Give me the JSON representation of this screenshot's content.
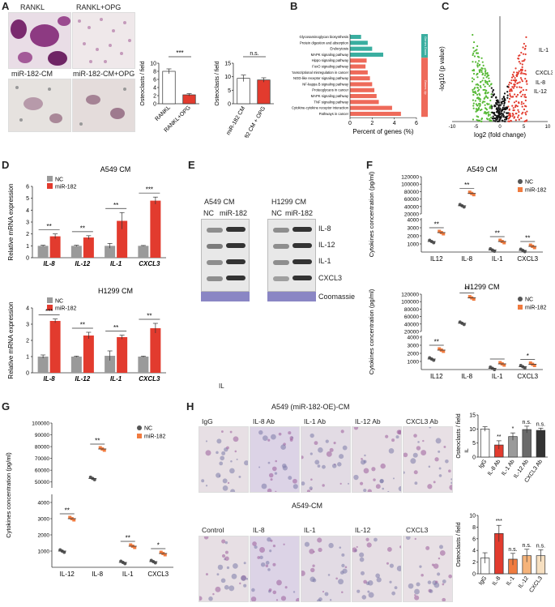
{
  "panels": {
    "A": "A",
    "B": "B",
    "C": "C",
    "D": "D",
    "E": "E",
    "F": "F",
    "G": "G",
    "H": "H"
  },
  "colors": {
    "red": "#e23b2e",
    "gray": "#9a9a9a",
    "dark": "#555555",
    "teal": "#3aaea0",
    "salmon": "#ee6a5a",
    "orange": "#f07b3f",
    "light_orange": "#f5b37a",
    "beige": "#f6dfc0",
    "green": "#56b935"
  },
  "A": {
    "micro_labels": [
      "RANKL",
      "RANKL+OPG",
      "miR-182-CM",
      "miR-182-CM+OPG"
    ],
    "chart1": {
      "ylabel": "Osteoclasts / field",
      "categories": [
        "RANKL",
        "RANKL+OPG"
      ],
      "sig": "***"
    },
    "chart2": {
      "ylabel": "Osteoclasts / field",
      "categories": [
        "miR-182 CM",
        "miR-182 CM + OPG"
      ],
      "sig": "n.s."
    }
  },
  "B": {
    "xlabel": "Percent of genes (%)",
    "ticks": [
      "0",
      "2",
      "4",
      "6"
    ],
    "group_down": "Genes Down",
    "group_up": "Genes Up"
  },
  "C": {
    "xlabel": "log2 (fold change)",
    "ylabel": "-log10 (p value)",
    "x_ticks": [
      "-10",
      "-5",
      "0",
      "5",
      "10"
    ],
    "labels": [
      "IL-1",
      "CXCL3",
      "IL-8",
      "IL-12"
    ]
  },
  "D": {
    "top": {
      "title": "A549 CM",
      "ylabel": "Relative mRNA expression",
      "legend": [
        "NC",
        "miR-182"
      ],
      "categories": [
        "IL-8",
        "IL-12",
        "IL-1",
        "CXCL3"
      ],
      "sig": [
        "**",
        "**",
        "**",
        "***"
      ]
    },
    "bottom": {
      "title": "H1299 CM",
      "ylabel": "Relative mRNA expression",
      "legend": [
        "NC",
        "miR-182"
      ],
      "categories": [
        "IL-8",
        "IL-12",
        "IL-1",
        "CXCL3"
      ],
      "sig": [
        "***",
        "**",
        "**",
        "**"
      ]
    }
  },
  "E": {
    "a549": {
      "title": "A549 CM",
      "cols": [
        "NC",
        "miR-182"
      ]
    },
    "h1299": {
      "title": "H1299 CM",
      "cols": [
        "NC",
        "miR-182"
      ]
    },
    "rows": [
      "IL-8",
      "IL-12",
      "IL-1",
      "CXCL3",
      "Coomassie"
    ],
    "stray": "IL"
  },
  "F": {
    "top": {
      "title": "A549 CM",
      "ylabel": "Cytokines concentration (pg/ml)",
      "legend": [
        "NC",
        "miR-182"
      ],
      "categories": [
        "IL12",
        "IL-8",
        "IL-1",
        "CXCL3"
      ],
      "sig": [
        "**",
        "**",
        "**",
        "**"
      ],
      "upper_ticks": [
        "120000",
        "100000",
        "80000",
        "60000",
        "40000",
        "20000"
      ],
      "lower_ticks": [
        "1000",
        "2000",
        "3000",
        "4000"
      ]
    },
    "bottom": {
      "title": "H1299 CM",
      "ylabel": "Cytokines concentration (pg/ml)",
      "legend": [
        "NC",
        "miR-182"
      ],
      "categories": [
        "IL12",
        "IL-8",
        "IL-1",
        "CXCL3"
      ],
      "sig": [
        "**",
        "**",
        "",
        "*"
      ],
      "upper_ticks": [
        "120000",
        "100000",
        "80000",
        "60000",
        "40000",
        "20000"
      ],
      "lower_ticks": [
        "1000",
        "2000",
        "3000",
        "4000"
      ]
    }
  },
  "G": {
    "ylabel": "Cytokines concentration (pg/ml)",
    "legend": [
      "NC",
      "miR-182"
    ],
    "categories": [
      "IL-12",
      "IL-8",
      "IL-1",
      "CXCL3"
    ],
    "sig": [
      "**",
      "**",
      "**",
      "*"
    ],
    "upper_ticks": [
      "100000",
      "90000",
      "80000",
      "70000",
      "60000",
      "50000"
    ],
    "lower_ticks": [
      "1000",
      "2000",
      "3000",
      "4000"
    ]
  },
  "H": {
    "top": {
      "title": "A549 (miR-182-OE)-CM",
      "labels": [
        "IgG",
        "IL-8 Ab",
        "IL-1 Ab",
        "IL-12 Ab",
        "CXCL3 Ab"
      ],
      "chart": {
        "ylabel": "Osteoclasts / field",
        "categories": [
          "IgG",
          "IL-8 Ab",
          "IL-1 Ab",
          "IL-12 Ab",
          "CXCL3 Ab"
        ],
        "sig": [
          "",
          "**",
          "*",
          "n.s.",
          "n.s."
        ],
        "ticks": [
          "0",
          "5",
          "10",
          "15"
        ],
        "stray": "IL"
      }
    },
    "bottom": {
      "title": "A549-CM",
      "labels": [
        "Control",
        "IL-8",
        "IL-1",
        "IL-12",
        "CXCL3"
      ],
      "chart": {
        "ylabel": "Osteoclasts / field",
        "categories": [
          "IgG",
          "IL-8",
          "IL-1",
          "IL-12",
          "CXCL3"
        ],
        "sig": [
          "",
          "***",
          "n.s.",
          "n.s.",
          "n.s."
        ],
        "ticks": [
          "0",
          "2",
          "4",
          "6",
          "8",
          "10"
        ]
      }
    }
  },
  "chart_data": [
    {
      "type": "bar",
      "id": "A1",
      "categories": [
        "RANKL",
        "RANKL+OPG"
      ],
      "values": [
        8,
        2.2
      ],
      "errors": [
        0.6,
        0.3
      ],
      "ylabel": "Osteoclasts / field",
      "ylim": [
        0,
        10
      ],
      "ticks": [
        0,
        2,
        4,
        6,
        8,
        10
      ]
    },
    {
      "type": "bar",
      "id": "A2",
      "categories": [
        "miR-182 CM",
        "miR-182 CM + OPG"
      ],
      "values": [
        9.4,
        8.8
      ],
      "errors": [
        1.2,
        0.8
      ],
      "ylabel": "Osteoclasts / field",
      "ylim": [
        0,
        15
      ],
      "ticks": [
        0,
        5,
        10,
        15
      ]
    },
    {
      "type": "bar",
      "id": "B",
      "orientation": "horizontal",
      "categories": [
        "Glycosaminoglycan biosynthesis",
        "Protein digestion and absorption",
        "Endocytosis",
        "MAPK signaling pathway",
        "Hippo signaling pathway",
        "FoxO signaling pathway",
        "Transcriptional misregulation in cancer",
        "NOD-like receptor signaling pathway",
        "NF-kappa B signaling pathway",
        "Proteoglycans in cancer",
        "MAPK signaling pathway",
        "TNF signaling pathway",
        "Cytokine-cytokine receptor interaction",
        "Pathways in cancer"
      ],
      "values": [
        1.0,
        1.6,
        2.0,
        3.0,
        1.5,
        1.4,
        1.6,
        1.8,
        2.0,
        2.2,
        2.4,
        2.6,
        3.8,
        4.6
      ],
      "groups": [
        "down",
        "down",
        "down",
        "down",
        "up",
        "up",
        "up",
        "up",
        "up",
        "up",
        "up",
        "up",
        "up",
        "up"
      ],
      "xlabel": "Percent of genes (%)",
      "xlim": [
        0,
        6
      ]
    },
    {
      "type": "bar",
      "id": "D_top",
      "categories": [
        "IL-8",
        "IL-12",
        "IL-1",
        "CXCL3"
      ],
      "series": [
        {
          "name": "NC",
          "values": [
            1,
            1,
            1,
            1
          ],
          "errors": [
            0.05,
            0.05,
            0.2,
            0.03
          ]
        },
        {
          "name": "miR-182",
          "values": [
            1.8,
            1.7,
            3.1,
            4.8
          ],
          "errors": [
            0.2,
            0.15,
            0.7,
            0.3
          ]
        }
      ],
      "ylabel": "Relative mRNA expression",
      "ylim": [
        0,
        6
      ],
      "ticks": [
        0,
        1,
        2,
        3,
        4,
        5,
        6
      ]
    },
    {
      "type": "bar",
      "id": "D_bottom",
      "categories": [
        "IL-8",
        "IL-12",
        "IL-1",
        "CXCL3"
      ],
      "series": [
        {
          "name": "NC",
          "values": [
            1,
            1,
            1.05,
            1
          ],
          "errors": [
            0.1,
            0.03,
            0.3,
            0.03
          ]
        },
        {
          "name": "miR-182",
          "values": [
            3.2,
            2.3,
            2.2,
            2.75
          ],
          "errors": [
            0.12,
            0.2,
            0.12,
            0.3
          ]
        }
      ],
      "ylabel": "Relative mRNA expression",
      "ylim": [
        0,
        4
      ],
      "ticks": [
        0,
        1,
        2,
        3,
        4
      ]
    },
    {
      "type": "scatter",
      "id": "F_top",
      "categories": [
        "IL12",
        "IL-8",
        "IL-1",
        "CXCL3"
      ],
      "series": [
        {
          "name": "NC",
          "values": [
            1300,
            42000,
            250,
            200
          ]
        },
        {
          "name": "miR-182",
          "values": [
            2400,
            75000,
            1300,
            700
          ]
        }
      ],
      "ylabel": "Cytokines concentration (pg/ml)"
    },
    {
      "type": "scatter",
      "id": "F_bottom",
      "categories": [
        "IL12",
        "IL-8",
        "IL-1",
        "CXCL3"
      ],
      "series": [
        {
          "name": "NC",
          "values": [
            1300,
            42000,
            150,
            350
          ]
        },
        {
          "name": "miR-182",
          "values": [
            2400,
            110000,
            700,
            650
          ]
        }
      ],
      "ylabel": "Cytokines concentration (pg/ml)"
    },
    {
      "type": "scatter",
      "id": "G",
      "categories": [
        "IL-12",
        "IL-8",
        "IL-1",
        "CXCL3"
      ],
      "series": [
        {
          "name": "NC",
          "values": [
            1000,
            53000,
            300,
            350
          ]
        },
        {
          "name": "miR-182",
          "values": [
            3000,
            78000,
            1300,
            850
          ]
        }
      ],
      "ylabel": "Cytokines concentration (pg/ml)"
    },
    {
      "type": "bar",
      "id": "H_top",
      "categories": [
        "IgG",
        "IL-8 Ab",
        "IL-1 Ab",
        "IL-12 Ab",
        "CXCL3 Ab"
      ],
      "values": [
        10,
        4.3,
        7.3,
        9.8,
        9.5
      ],
      "errors": [
        0.8,
        1.5,
        1.3,
        1.2,
        0.8
      ],
      "ylabel": "Osteoclasts / field",
      "ylim": [
        0,
        15
      ],
      "ticks": [
        0,
        5,
        10,
        15
      ]
    },
    {
      "type": "bar",
      "id": "H_bottom",
      "categories": [
        "IgG",
        "IL-8",
        "IL-1",
        "IL-12",
        "CXCL3"
      ],
      "values": [
        2.7,
        6.9,
        2.5,
        3.1,
        3.1
      ],
      "errors": [
        0.9,
        1.4,
        1.0,
        1.1,
        1.0
      ],
      "ylabel": "Osteoclasts / field",
      "ylim": [
        0,
        10
      ],
      "ticks": [
        0,
        2,
        4,
        6,
        8,
        10
      ]
    }
  ]
}
